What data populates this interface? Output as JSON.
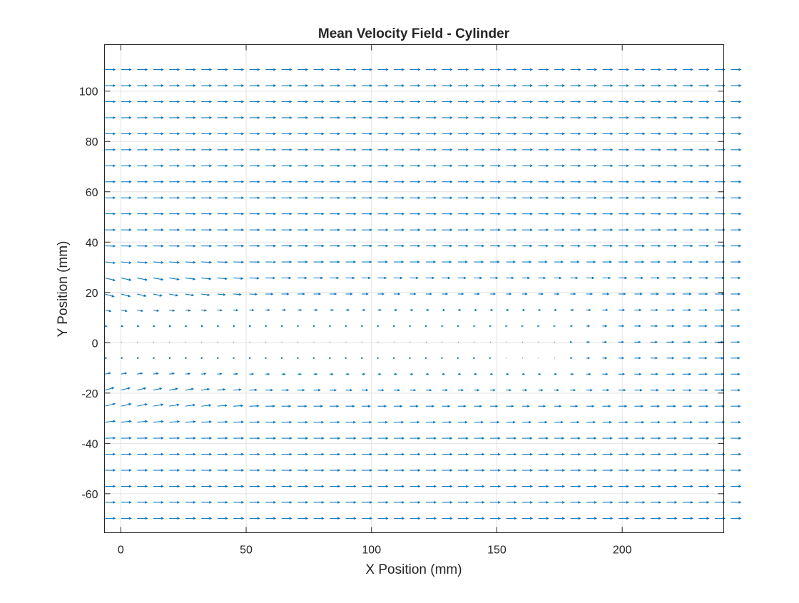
{
  "chart_data": {
    "type": "quiver",
    "title": "Mean Velocity Field - Cylinder",
    "xlabel": "X Position (mm)",
    "ylabel": "Y Position (mm)",
    "xlim": [
      -6.5,
      240.5
    ],
    "ylim": [
      -75.5,
      118.5
    ],
    "xticks": [
      0,
      50,
      100,
      150,
      200
    ],
    "xtick_labels": [
      "0",
      "50",
      "100",
      "150",
      "200"
    ],
    "yticks": [
      -60,
      -40,
      -20,
      0,
      20,
      40,
      60,
      80,
      100
    ],
    "ytick_labels": [
      "-60",
      "-40",
      "-20",
      "0",
      "20",
      "40",
      "60",
      "80",
      "100"
    ],
    "grid": true,
    "colors": {
      "arrows": "#0072BD",
      "grid": "#e3e3e3",
      "axes": "#262626"
    },
    "grid_x": {
      "start": -6.3,
      "step": 6.4,
      "count": 40
    },
    "grid_y": {
      "start": -69.8,
      "step": 6.37,
      "count": 29
    },
    "field_description": "uniform free-stream in +x direction with a low-velocity wake region centered near y = 0 downstream of the cylinder",
    "reference_magnitude": 1.0
  }
}
